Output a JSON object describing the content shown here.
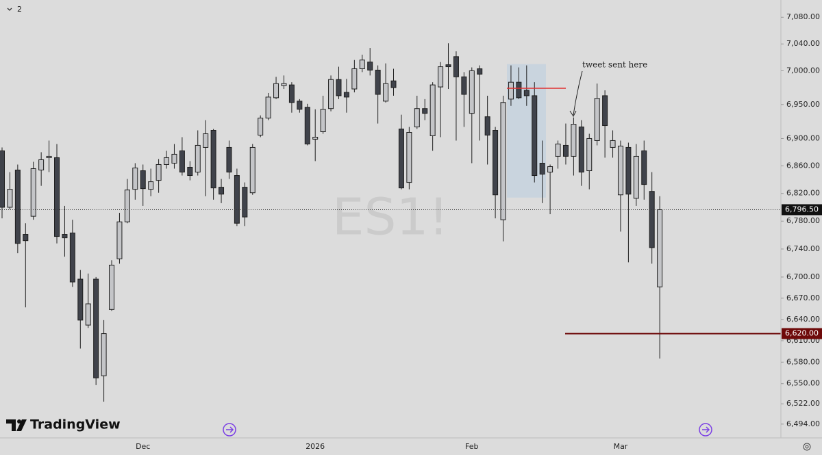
{
  "chart_data": {
    "type": "candlestick",
    "symbol": "ES1!",
    "brand": "TradingView",
    "indicator_count": "2",
    "annotation": "tweet sent here",
    "categories": [
      null,
      null,
      null,
      null,
      null,
      null,
      null,
      null,
      null,
      null,
      null,
      null,
      null,
      null,
      null,
      null,
      null,
      null,
      "Dec",
      null,
      null,
      null,
      null,
      null,
      null,
      null,
      null,
      null,
      null,
      null,
      null,
      null,
      null,
      null,
      null,
      null,
      null,
      null,
      null,
      null,
      "2026",
      null,
      null,
      null,
      null,
      null,
      null,
      null,
      null,
      null,
      null,
      null,
      null,
      null,
      null,
      null,
      null,
      null,
      null,
      null,
      "Feb",
      null,
      null,
      null,
      null,
      null,
      null,
      null,
      null,
      null,
      null,
      null,
      null,
      null,
      null,
      null,
      null,
      null,
      null,
      "Mar",
      null,
      null,
      null,
      null,
      null
    ],
    "open": [
      6882,
      6800,
      6854,
      6761,
      6787,
      6854,
      6872,
      6872,
      6761,
      6763,
      6697,
      6632,
      6697,
      6561,
      6654,
      6726,
      6779,
      6826,
      6853,
      6826,
      6839,
      6862,
      6864,
      6882,
      6858,
      6851,
      6887,
      6912,
      6829,
      6887,
      6846,
      6829,
      6821,
      6905,
      6930,
      6960,
      6978,
      6979,
      6955,
      6946,
      6899,
      6910,
      6944,
      6987,
      6968,
      6973,
      7003,
      7013,
      7001,
      6955,
      6985,
      6914,
      6836,
      6917,
      6944,
      6904,
      6976,
      7009,
      7021,
      6991,
      6937,
      7003,
      6932,
      6912,
      6782,
      6958,
      6983,
      6971,
      6963,
      6864,
      6851,
      6874,
      6890,
      6874,
      6917,
      6853,
      6897,
      6963,
      6887,
      6818,
      6887,
      6813,
      6882,
      6823,
      6686
    ],
    "high": [
      6887,
      6851,
      6862,
      6777,
      6866,
      6880,
      6897,
      6892,
      6802,
      6782,
      6710,
      6705,
      6700,
      6639,
      6724,
      6792,
      6841,
      6864,
      6862,
      6856,
      6870,
      6882,
      6892,
      6902,
      6867,
      6912,
      6927,
      6914,
      6841,
      6897,
      6856,
      6836,
      6892,
      6934,
      6967,
      6991,
      6993,
      6983,
      6958,
      6951,
      6943,
      6963,
      6993,
      7006,
      6988,
      7016,
      7024,
      7034,
      7008,
      7011,
      7003,
      6935,
      6917,
      6963,
      6958,
      6983,
      7013,
      7041,
      7029,
      6998,
      7005,
      7008,
      6963,
      6917,
      6963,
      7008,
      7005,
      7008,
      6983,
      6897,
      6862,
      6897,
      6922,
      6931,
      6927,
      6907,
      6981,
      6971,
      6912,
      6897,
      6894,
      6892,
      6897,
      6851,
      6816
    ],
    "low": [
      6784,
      6797,
      6734,
      6657,
      6782,
      6831,
      6851,
      6748,
      6729,
      6686,
      6599,
      6628,
      6548,
      6525,
      6652,
      6719,
      6777,
      6811,
      6802,
      6816,
      6821,
      6856,
      6856,
      6846,
      6839,
      6846,
      6816,
      6811,
      6806,
      6841,
      6773,
      6773,
      6818,
      6902,
      6927,
      6958,
      6973,
      6938,
      6938,
      6890,
      6867,
      6907,
      6940,
      6958,
      6938,
      6968,
      6998,
      6993,
      6922,
      6953,
      6963,
      6826,
      6826,
      6914,
      6927,
      6882,
      6902,
      6973,
      6897,
      6917,
      6864,
      6897,
      6862,
      6784,
      6751,
      6948,
      6958,
      6948,
      6836,
      6806,
      6790,
      6856,
      6862,
      6846,
      6831,
      6826,
      6890,
      6872,
      6872,
      6765,
      6721,
      6802,
      6811,
      6719,
      6585
    ],
    "close": [
      6800,
      6826,
      6748,
      6752,
      6856,
      6869,
      6874,
      6758,
      6756,
      6693,
      6639,
      6662,
      6558,
      6620,
      6717,
      6779,
      6825,
      6857,
      6827,
      6837,
      6862,
      6872,
      6877,
      6851,
      6846,
      6890,
      6907,
      6828,
      6819,
      6851,
      6777,
      6786,
      6887,
      6930,
      6961,
      6981,
      6981,
      6953,
      6943,
      6892,
      6902,
      6943,
      6987,
      6963,
      6961,
      7003,
      7016,
      7001,
      6965,
      6981,
      6975,
      6828,
      6909,
      6944,
      6937,
      6979,
      7006,
      7006,
      6991,
      6965,
      7000,
      6995,
      6905,
      6818,
      6953,
      6983,
      6960,
      6963,
      6846,
      6848,
      6859,
      6892,
      6874,
      6921,
      6851,
      6900,
      6959,
      6919,
      6897,
      6889,
      6819,
      6874,
      6833,
      6742,
      6796.5
    ],
    "up_color": "#c4c5c8",
    "down_color": "#40434b",
    "wick_color": "#1e1e1e",
    "log": true,
    "ylim": [
      6475,
      7106
    ],
    "yticks": [
      {
        "value": 7080,
        "label": "7,080.00"
      },
      {
        "value": 7040,
        "label": "7,040.00"
      },
      {
        "value": 7000,
        "label": "7,000.00"
      },
      {
        "value": 6950,
        "label": "6,950.00"
      },
      {
        "value": 6900,
        "label": "6,900.00"
      },
      {
        "value": 6860,
        "label": "6,860.00"
      },
      {
        "value": 6820,
        "label": "6,820.00"
      },
      {
        "value": 6780,
        "label": "6,780.00"
      },
      {
        "value": 6740,
        "label": "6,740.00"
      },
      {
        "value": 6700,
        "label": "6,700.00"
      },
      {
        "value": 6670,
        "label": "6,670.00"
      },
      {
        "value": 6640,
        "label": "6,640.00"
      },
      {
        "value": 6610,
        "label": "6,610.00"
      },
      {
        "value": 6580,
        "label": "6,580.00"
      },
      {
        "value": 6550,
        "label": "6,550.00"
      },
      {
        "value": 6522,
        "label": "6,522.00"
      },
      {
        "value": 6494,
        "label": "6,494.00"
      }
    ],
    "last_price": {
      "value": 6796.5,
      "label": "6,796.50"
    },
    "level": {
      "value": 6620,
      "label": "6,620.00",
      "color": "#6e0a0a"
    },
    "entry_line": 6974,
    "range_box": [
      6814,
      7010
    ]
  }
}
